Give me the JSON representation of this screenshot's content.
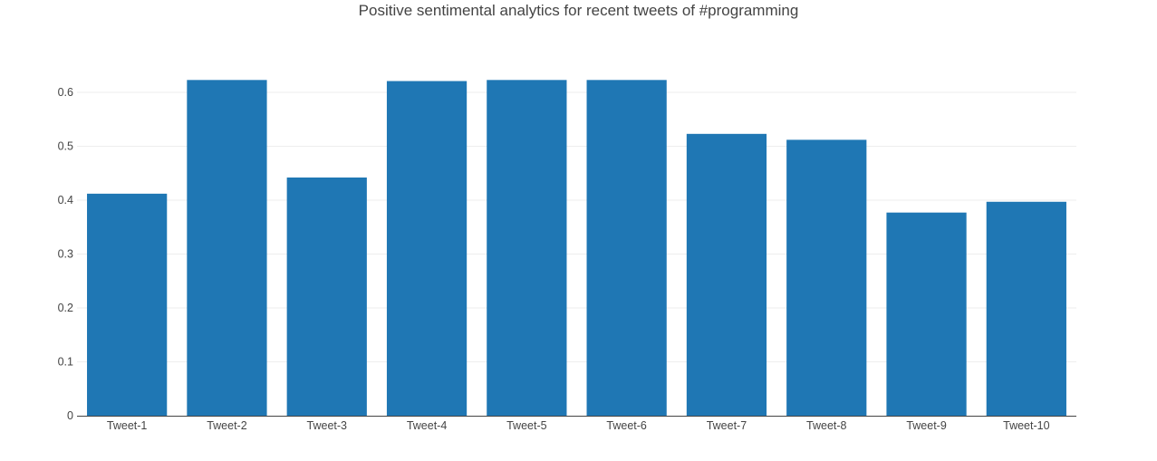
{
  "chart_data": {
    "type": "bar",
    "title": "Positive sentimental analytics for recent tweets of #programming",
    "xlabel": "",
    "ylabel": "",
    "categories": [
      "Tweet-1",
      "Tweet-2",
      "Tweet-3",
      "Tweet-4",
      "Tweet-5",
      "Tweet-6",
      "Tweet-7",
      "Tweet-8",
      "Tweet-9",
      "Tweet-10"
    ],
    "values": [
      0.412,
      0.623,
      0.442,
      0.621,
      0.623,
      0.623,
      0.523,
      0.512,
      0.377,
      0.397
    ],
    "ylim": [
      0,
      0.6
    ],
    "yticks": [
      0,
      0.1,
      0.2,
      0.3,
      0.4,
      0.5,
      0.6
    ],
    "ytick_labels": [
      "0",
      "0.1",
      "0.2",
      "0.3",
      "0.4",
      "0.5",
      "0.6"
    ],
    "grid": true,
    "legend": "none",
    "bar_color": "#1f77b4",
    "grid_color": "#eeeeee",
    "axis_color": "#444444"
  }
}
